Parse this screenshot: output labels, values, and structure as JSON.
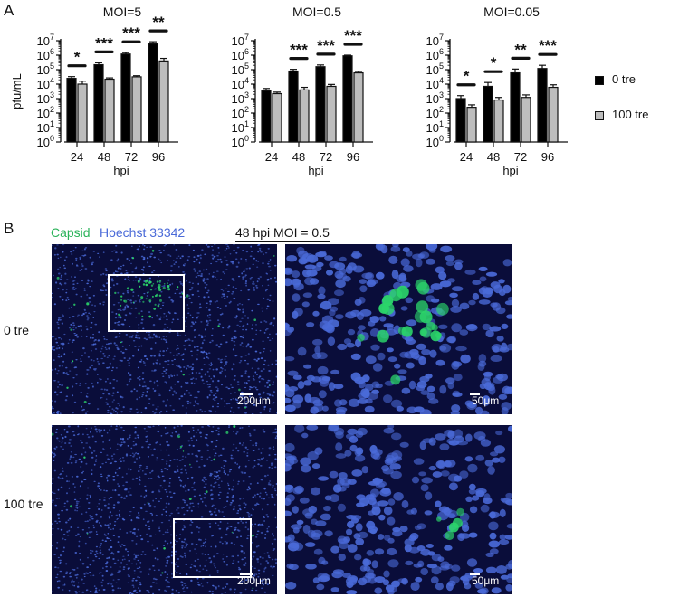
{
  "panels": {
    "a_label": "A",
    "b_label": "B"
  },
  "chart_data": [
    {
      "type": "bar",
      "title": "MOI=5",
      "categories": [
        "24",
        "48",
        "72",
        "96"
      ],
      "xlabel": "hpi",
      "ylabel": "pfu/mL",
      "y_scale": "log",
      "ylim": [
        1,
        10000000
      ],
      "yticks": [
        {
          "base": "10",
          "exp": "0"
        },
        {
          "base": "10",
          "exp": "1"
        },
        {
          "base": "10",
          "exp": "2"
        },
        {
          "base": "10",
          "exp": "3"
        },
        {
          "base": "10",
          "exp": "4"
        },
        {
          "base": "10",
          "exp": "5"
        },
        {
          "base": "10",
          "exp": "6"
        },
        {
          "base": "10",
          "exp": "7"
        }
      ],
      "series": [
        {
          "name": "0 tre",
          "color": "#000000",
          "values": [
            25000,
            220000,
            1200000,
            6000000
          ],
          "error": [
            8000,
            80000,
            300000,
            2500000
          ]
        },
        {
          "name": "100 tre",
          "color": "#bdbdbd",
          "values": [
            10000,
            22000,
            32000,
            400000
          ],
          "error": [
            6000,
            5000,
            6000,
            200000
          ]
        }
      ],
      "significance": [
        "*",
        "***",
        "***",
        "**"
      ]
    },
    {
      "type": "bar",
      "title": "MOI=0.5",
      "categories": [
        "24",
        "48",
        "72",
        "96"
      ],
      "xlabel": "hpi",
      "ylabel": "",
      "y_scale": "log",
      "ylim": [
        1,
        10000000
      ],
      "yticks": [
        {
          "base": "10",
          "exp": "0"
        },
        {
          "base": "10",
          "exp": "1"
        },
        {
          "base": "10",
          "exp": "2"
        },
        {
          "base": "10",
          "exp": "3"
        },
        {
          "base": "10",
          "exp": "4"
        },
        {
          "base": "10",
          "exp": "5"
        },
        {
          "base": "10",
          "exp": "6"
        },
        {
          "base": "10",
          "exp": "7"
        }
      ],
      "series": [
        {
          "name": "0 tre",
          "color": "#000000",
          "values": [
            3500,
            80000,
            160000,
            900000
          ],
          "error": [
            1500,
            25000,
            50000,
            100000
          ]
        },
        {
          "name": "100 tre",
          "color": "#bdbdbd",
          "values": [
            2200,
            4000,
            7000,
            60000
          ],
          "error": [
            600,
            2000,
            2500,
            15000
          ]
        }
      ],
      "significance": [
        "",
        "***",
        "***",
        "***"
      ]
    },
    {
      "type": "bar",
      "title": "MOI=0.05",
      "categories": [
        "24",
        "48",
        "72",
        "96"
      ],
      "xlabel": "hpi",
      "ylabel": "",
      "y_scale": "log",
      "ylim": [
        1,
        10000000
      ],
      "yticks": [
        {
          "base": "10",
          "exp": "0"
        },
        {
          "base": "10",
          "exp": "1"
        },
        {
          "base": "10",
          "exp": "2"
        },
        {
          "base": "10",
          "exp": "3"
        },
        {
          "base": "10",
          "exp": "4"
        },
        {
          "base": "10",
          "exp": "5"
        },
        {
          "base": "10",
          "exp": "6"
        },
        {
          "base": "10",
          "exp": "7"
        }
      ],
      "series": [
        {
          "name": "0 tre",
          "color": "#000000",
          "values": [
            1000,
            7000,
            60000,
            120000
          ],
          "error": [
            600,
            6000,
            50000,
            80000
          ]
        },
        {
          "name": "100 tre",
          "color": "#bdbdbd",
          "values": [
            250,
            800,
            1200,
            6000
          ],
          "error": [
            120,
            400,
            600,
            3000
          ]
        }
      ],
      "significance": [
        "*",
        "*",
        "**",
        "***"
      ]
    }
  ],
  "legend": {
    "items": [
      {
        "label": "0 tre",
        "color": "#000000"
      },
      {
        "label": "100 tre",
        "color": "#bdbdbd"
      }
    ]
  },
  "panel_b": {
    "stain_capsid": "Capsid",
    "stain_hoechst": "Hoechst 33342",
    "condition": "48 hpi MOI = 0.5",
    "colors": {
      "capsid": "#2bd46a",
      "hoechst": "#4a6ad8",
      "background": "#0a0d3a"
    },
    "rows": [
      {
        "label": "0 tre",
        "scale_low": "200μm",
        "scale_high": "50μm"
      },
      {
        "label": "100 tre",
        "scale_low": "200μm",
        "scale_high": "50μm"
      }
    ]
  }
}
